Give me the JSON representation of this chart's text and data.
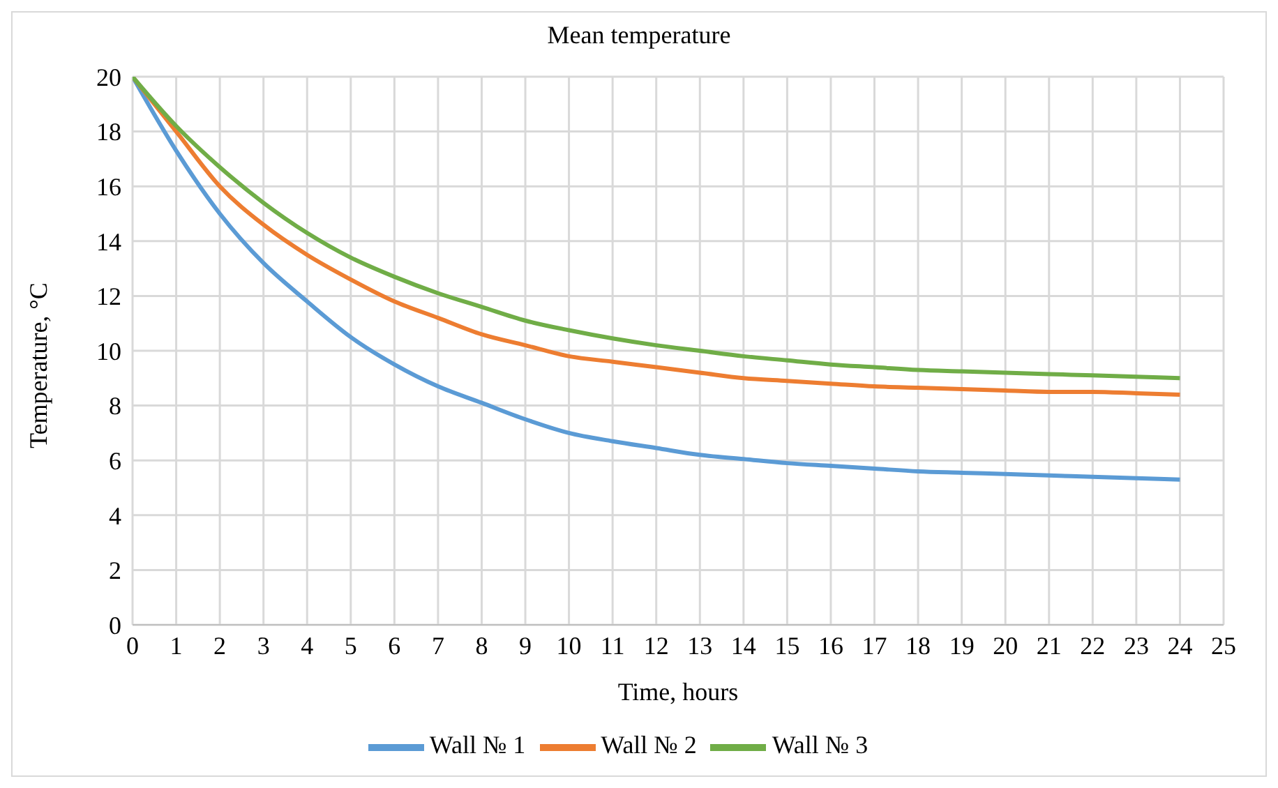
{
  "chart_data": {
    "type": "line",
    "title": "Mean temperature",
    "xlabel": "Time, hours",
    "ylabel": "Temperature, °C",
    "x": [
      0,
      1,
      2,
      3,
      4,
      5,
      6,
      7,
      8,
      9,
      10,
      11,
      12,
      13,
      14,
      15,
      16,
      17,
      18,
      19,
      20,
      21,
      22,
      23,
      24
    ],
    "series": [
      {
        "name": "Wall № 1",
        "color": "#5b9bd5",
        "values": [
          20,
          17.3,
          15.0,
          13.2,
          11.8,
          10.5,
          9.5,
          8.7,
          8.1,
          7.5,
          7.0,
          6.7,
          6.45,
          6.2,
          6.05,
          5.9,
          5.8,
          5.7,
          5.6,
          5.55,
          5.5,
          5.45,
          5.4,
          5.35,
          5.3
        ]
      },
      {
        "name": "Wall № 2",
        "color": "#ed7d31",
        "values": [
          20,
          18.0,
          16.0,
          14.6,
          13.5,
          12.6,
          11.8,
          11.2,
          10.6,
          10.2,
          9.8,
          9.6,
          9.4,
          9.2,
          9.0,
          8.9,
          8.8,
          8.7,
          8.65,
          8.6,
          8.55,
          8.5,
          8.5,
          8.45,
          8.4
        ]
      },
      {
        "name": "Wall № 3",
        "color": "#70ad47",
        "values": [
          20,
          18.2,
          16.7,
          15.4,
          14.3,
          13.4,
          12.7,
          12.1,
          11.6,
          11.1,
          10.75,
          10.45,
          10.2,
          10.0,
          9.8,
          9.65,
          9.5,
          9.4,
          9.3,
          9.25,
          9.2,
          9.15,
          9.1,
          9.05,
          9.0
        ]
      }
    ],
    "xlim": [
      0,
      25
    ],
    "xticks": [
      0,
      1,
      2,
      3,
      4,
      5,
      6,
      7,
      8,
      9,
      10,
      11,
      12,
      13,
      14,
      15,
      16,
      17,
      18,
      19,
      20,
      21,
      22,
      23,
      24,
      25
    ],
    "ylim": [
      0,
      20
    ],
    "yticks": [
      0,
      2,
      4,
      6,
      8,
      10,
      12,
      14,
      16,
      18,
      20
    ],
    "grid": true,
    "legend": "bottom",
    "marker": "none",
    "line_style": "solid"
  }
}
